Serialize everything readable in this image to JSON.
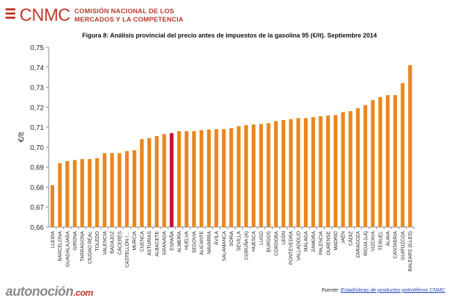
{
  "header": {
    "logo_text": "CNMC",
    "logo_line1": "COMISIÓN NACIONAL DE LOS",
    "logo_line2": "MERCADOS Y LA COMPETENCIA"
  },
  "colors": {
    "bar": "#e8871e",
    "highlight": "#c8102e",
    "brand_red": "#c0392b"
  },
  "chart_data": {
    "type": "bar",
    "title": "Figura 8: Análisis provincial del precio antes de impuestos de la gasolina 95 (€/lt). Septiembre 2014",
    "ylabel": "€/lt",
    "xlabel": "",
    "ylim": [
      0.66,
      0.75
    ],
    "yticks": [
      "0,66",
      "0,67",
      "0,68",
      "0,69",
      "0,70",
      "0,71",
      "0,72",
      "0,73",
      "0,74",
      "0,75"
    ],
    "grid": false,
    "highlight_category": "ESPAÑA",
    "categories": [
      "LLEIDA",
      "BARCELONA",
      "GUADALAJARA",
      "GIRONA",
      "TARRAGONA",
      "CIUDAD REAL",
      "TOLEDO",
      "VALENCIA",
      "BADAJOZ",
      "CÁCERES",
      "CASTELLÓN /…",
      "MURCIA",
      "CUENCA",
      "ASTURIAS",
      "ALBACETE",
      "GRANADA",
      "ESPAÑA",
      "ALMERÍA",
      "HUELVA",
      "SEGOVIA",
      "ALICANTE",
      "NAVARRA",
      "ÁVILA",
      "SALAMANCA",
      "SORIA",
      "SEVILLA",
      "CORUÑA (A)",
      "HUESCA",
      "LUGO",
      "BURGOS",
      "CÓRDOBA",
      "LEÓN",
      "PONTEVEDRA",
      "VALLADOLID",
      "MÁLAGA",
      "ZAMORA",
      "PALENCIA",
      "OURENSE",
      "MADRID",
      "JAÉN",
      "CÁDIZ",
      "ZARAGOZA",
      "RIOJA (LA)",
      "VIZCAYA",
      "TERUEL",
      "ÁLAVA",
      "CANTABRIA",
      "GUIPÚZCOA",
      "BALEARS (ILLES)"
    ],
    "values": [
      0.681,
      0.692,
      0.693,
      0.6935,
      0.694,
      0.694,
      0.6945,
      0.697,
      0.697,
      0.697,
      0.698,
      0.6985,
      0.704,
      0.7045,
      0.7055,
      0.7065,
      0.707,
      0.708,
      0.708,
      0.708,
      0.7085,
      0.7088,
      0.709,
      0.709,
      0.7095,
      0.7105,
      0.711,
      0.7113,
      0.7115,
      0.712,
      0.713,
      0.7135,
      0.714,
      0.7145,
      0.7145,
      0.715,
      0.7155,
      0.7158,
      0.716,
      0.7175,
      0.718,
      0.7195,
      0.721,
      0.7235,
      0.725,
      0.726,
      0.726,
      0.732,
      0.741
    ]
  },
  "footer": {
    "brand_main": "autonoción",
    "brand_suffix": ".com",
    "source_label": "Fuente:",
    "source_link": "Estadísticas de productos petrolíferos CNMC"
  }
}
